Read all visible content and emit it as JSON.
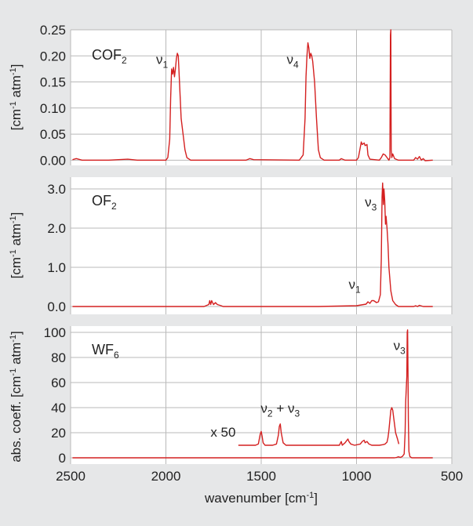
{
  "chart_data": [
    {
      "type": "line",
      "panel_id": "top",
      "species_label": "COF2",
      "ylabel": "[cm-1 atm-1]",
      "xlim": [
        2500,
        500
      ],
      "ylim": [
        -0.01,
        0.25
      ],
      "x_ticks": [
        2500,
        2000,
        1500,
        1000,
        500
      ],
      "y_ticks": [
        0.25,
        0.2,
        0.15,
        0.1,
        0.05,
        0.0
      ],
      "y_tick_labels": [
        "0.25",
        "0.20",
        "0.15",
        "0.10",
        "0.05",
        "0.00"
      ],
      "annotations": [
        {
          "text": "ν1",
          "x": 2020,
          "y": 0.185
        },
        {
          "text": "ν4",
          "x": 1335,
          "y": 0.185
        }
      ],
      "series": [
        {
          "color": "#d42020",
          "points": [
            [
              2490,
              0.001
            ],
            [
              2470,
              0.003
            ],
            [
              2440,
              0.0
            ],
            [
              2300,
              0.0
            ],
            [
              2200,
              0.002
            ],
            [
              2150,
              0.0
            ],
            [
              2000,
              0.0
            ],
            [
              1990,
              0.005
            ],
            [
              1980,
              0.04
            ],
            [
              1975,
              0.12
            ],
            [
              1970,
              0.175
            ],
            [
              1965,
              0.165
            ],
            [
              1960,
              0.178
            ],
            [
              1955,
              0.16
            ],
            [
              1950,
              0.175
            ],
            [
              1945,
              0.195
            ],
            [
              1940,
              0.205
            ],
            [
              1935,
              0.2
            ],
            [
              1930,
              0.16
            ],
            [
              1920,
              0.08
            ],
            [
              1910,
              0.05
            ],
            [
              1900,
              0.02
            ],
            [
              1890,
              0.005
            ],
            [
              1870,
              0.0
            ],
            [
              1580,
              0.0
            ],
            [
              1560,
              0.003
            ],
            [
              1540,
              0.001
            ],
            [
              1300,
              0.0
            ],
            [
              1280,
              0.01
            ],
            [
              1270,
              0.08
            ],
            [
              1265,
              0.16
            ],
            [
              1260,
              0.2
            ],
            [
              1255,
              0.225
            ],
            [
              1250,
              0.215
            ],
            [
              1245,
              0.195
            ],
            [
              1240,
              0.205
            ],
            [
              1235,
              0.2
            ],
            [
              1230,
              0.19
            ],
            [
              1220,
              0.15
            ],
            [
              1210,
              0.08
            ],
            [
              1200,
              0.02
            ],
            [
              1190,
              0.005
            ],
            [
              1170,
              0.0
            ],
            [
              1090,
              0.0
            ],
            [
              1080,
              0.003
            ],
            [
              1060,
              0.0
            ],
            [
              1000,
              0.0
            ],
            [
              990,
              0.005
            ],
            [
              980,
              0.025
            ],
            [
              975,
              0.035
            ],
            [
              970,
              0.03
            ],
            [
              960,
              0.033
            ],
            [
              955,
              0.028
            ],
            [
              945,
              0.03
            ],
            [
              940,
              0.01
            ],
            [
              930,
              0.002
            ],
            [
              880,
              0.0
            ],
            [
              870,
              0.005
            ],
            [
              860,
              0.012
            ],
            [
              850,
              0.01
            ],
            [
              840,
              0.005
            ],
            [
              830,
              0.0
            ],
            [
              825,
              0.005
            ],
            [
              822,
              0.24
            ],
            [
              820,
              0.25
            ],
            [
              818,
              0.02
            ],
            [
              815,
              0.005
            ],
            [
              810,
              0.012
            ],
            [
              800,
              0.003
            ],
            [
              780,
              0.0
            ],
            [
              700,
              0.0
            ],
            [
              690,
              0.005
            ],
            [
              680,
              0.002
            ],
            [
              670,
              0.007
            ],
            [
              660,
              0.0
            ],
            [
              650,
              0.003
            ],
            [
              640,
              -0.001
            ],
            [
              600,
              0.0
            ]
          ]
        }
      ]
    },
    {
      "type": "line",
      "panel_id": "middle",
      "species_label": "OF2",
      "ylabel": "[cm-1 atm-1]",
      "xlim": [
        2500,
        500
      ],
      "ylim": [
        -0.2,
        3.3
      ],
      "x_ticks": [
        2500,
        2000,
        1500,
        1000,
        500
      ],
      "y_ticks": [
        3.0,
        2.0,
        1.0,
        0.0
      ],
      "y_tick_labels": [
        "3.0",
        "2.0",
        "1.0",
        "0.0"
      ],
      "annotations": [
        {
          "text": "ν3",
          "x": 925,
          "y": 2.55
        },
        {
          "text": "ν1",
          "x": 1010,
          "y": 0.45
        }
      ],
      "series": [
        {
          "color": "#d42020",
          "points": [
            [
              2490,
              0.0
            ],
            [
              1800,
              0.0
            ],
            [
              1775,
              0.05
            ],
            [
              1770,
              0.15
            ],
            [
              1765,
              0.05
            ],
            [
              1760,
              0.15
            ],
            [
              1755,
              0.1
            ],
            [
              1750,
              0.05
            ],
            [
              1740,
              0.1
            ],
            [
              1730,
              0.05
            ],
            [
              1710,
              0.02
            ],
            [
              1700,
              0.0
            ],
            [
              1200,
              0.0
            ],
            [
              1100,
              0.01
            ],
            [
              1000,
              0.02
            ],
            [
              950,
              0.06
            ],
            [
              940,
              0.12
            ],
            [
              930,
              0.08
            ],
            [
              920,
              0.15
            ],
            [
              910,
              0.15
            ],
            [
              895,
              0.1
            ],
            [
              885,
              0.12
            ],
            [
              875,
              0.3
            ],
            [
              870,
              1.2
            ],
            [
              866,
              2.8
            ],
            [
              863,
              3.15
            ],
            [
              859,
              2.6
            ],
            [
              856,
              3.0
            ],
            [
              852,
              2.7
            ],
            [
              848,
              2.1
            ],
            [
              845,
              2.3
            ],
            [
              840,
              2.0
            ],
            [
              835,
              1.6
            ],
            [
              830,
              1.0
            ],
            [
              820,
              0.4
            ],
            [
              810,
              0.15
            ],
            [
              795,
              0.05
            ],
            [
              780,
              0.0
            ],
            [
              700,
              0.0
            ],
            [
              690,
              0.02
            ],
            [
              680,
              0.0
            ],
            [
              670,
              0.03
            ],
            [
              650,
              0.0
            ],
            [
              600,
              0.0
            ]
          ]
        }
      ]
    },
    {
      "type": "line",
      "panel_id": "bottom",
      "species_label": "WF6",
      "ylabel": "abs. coeff. [cm-1 atm-1]",
      "xlabel": "wavenumber [cm-1]",
      "xlim": [
        2500,
        500
      ],
      "ylim": [
        -5,
        105
      ],
      "x_ticks": [
        2500,
        2000,
        1500,
        1000,
        500
      ],
      "x_tick_labels": [
        "2500",
        "2000",
        "1500",
        "1000",
        "500"
      ],
      "y_ticks": [
        100,
        80,
        60,
        40,
        20,
        0
      ],
      "y_tick_labels": [
        "100",
        "80",
        "60",
        "40",
        "20",
        "0"
      ],
      "annotations": [
        {
          "text": "ν3",
          "x": 775,
          "y": 86
        },
        {
          "text": "ν2 + ν3",
          "x": 1400,
          "y": 36
        },
        {
          "text": "x 50",
          "x": 1700,
          "y": 17
        }
      ],
      "series": [
        {
          "name": "x 50",
          "color": "#d42020",
          "points": [
            [
              1620,
              10.0
            ],
            [
              1530,
              10.0
            ],
            [
              1515,
              11.0
            ],
            [
              1510,
              15.0
            ],
            [
              1505,
              19.0
            ],
            [
              1500,
              21.0
            ],
            [
              1495,
              17.0
            ],
            [
              1490,
              12.0
            ],
            [
              1480,
              10.0
            ],
            [
              1440,
              10.0
            ],
            [
              1420,
              11.0
            ],
            [
              1410,
              18.0
            ],
            [
              1405,
              25.0
            ],
            [
              1400,
              27.0
            ],
            [
              1395,
              20.0
            ],
            [
              1385,
              12.0
            ],
            [
              1370,
              10.0
            ],
            [
              1090,
              10.0
            ],
            [
              1080,
              13.0
            ],
            [
              1075,
              10.0
            ],
            [
              1060,
              12.0
            ],
            [
              1050,
              14.0
            ],
            [
              1045,
              15.0
            ],
            [
              1040,
              13.0
            ],
            [
              1030,
              11.0
            ],
            [
              1010,
              10.0
            ],
            [
              980,
              11.0
            ],
            [
              970,
              13.0
            ],
            [
              960,
              14.0
            ],
            [
              955,
              12.0
            ],
            [
              945,
              13.0
            ],
            [
              935,
              11.0
            ],
            [
              920,
              10.0
            ],
            [
              880,
              10.0
            ],
            [
              860,
              10.5
            ],
            [
              850,
              11.0
            ],
            [
              840,
              12.5
            ],
            [
              835,
              16.0
            ],
            [
              830,
              22.0
            ],
            [
              825,
              30.0
            ],
            [
              820,
              38.0
            ],
            [
              815,
              40.0
            ],
            [
              810,
              38.0
            ],
            [
              805,
              32.0
            ],
            [
              800,
              26.0
            ],
            [
              795,
              20.0
            ],
            [
              785,
              15.0
            ],
            [
              778,
              11.0
            ]
          ]
        },
        {
          "name": "",
          "color": "#d42020",
          "points": [
            [
              2490,
              0.0
            ],
            [
              800,
              0.0
            ],
            [
              790,
              0.3
            ],
            [
              780,
              0.8
            ],
            [
              770,
              0.3
            ],
            [
              760,
              1.0
            ],
            [
              750,
              3.0
            ],
            [
              745,
              20.0
            ],
            [
              742,
              45.0
            ],
            [
              739,
              55.0
            ],
            [
              736,
              65.0
            ],
            [
              734,
              100.0
            ],
            [
              732,
              102.0
            ],
            [
              730,
              70.0
            ],
            [
              728,
              30.0
            ],
            [
              725,
              5.0
            ],
            [
              720,
              1.0
            ],
            [
              710,
              0.0
            ],
            [
              600,
              0.0
            ]
          ]
        }
      ]
    }
  ]
}
